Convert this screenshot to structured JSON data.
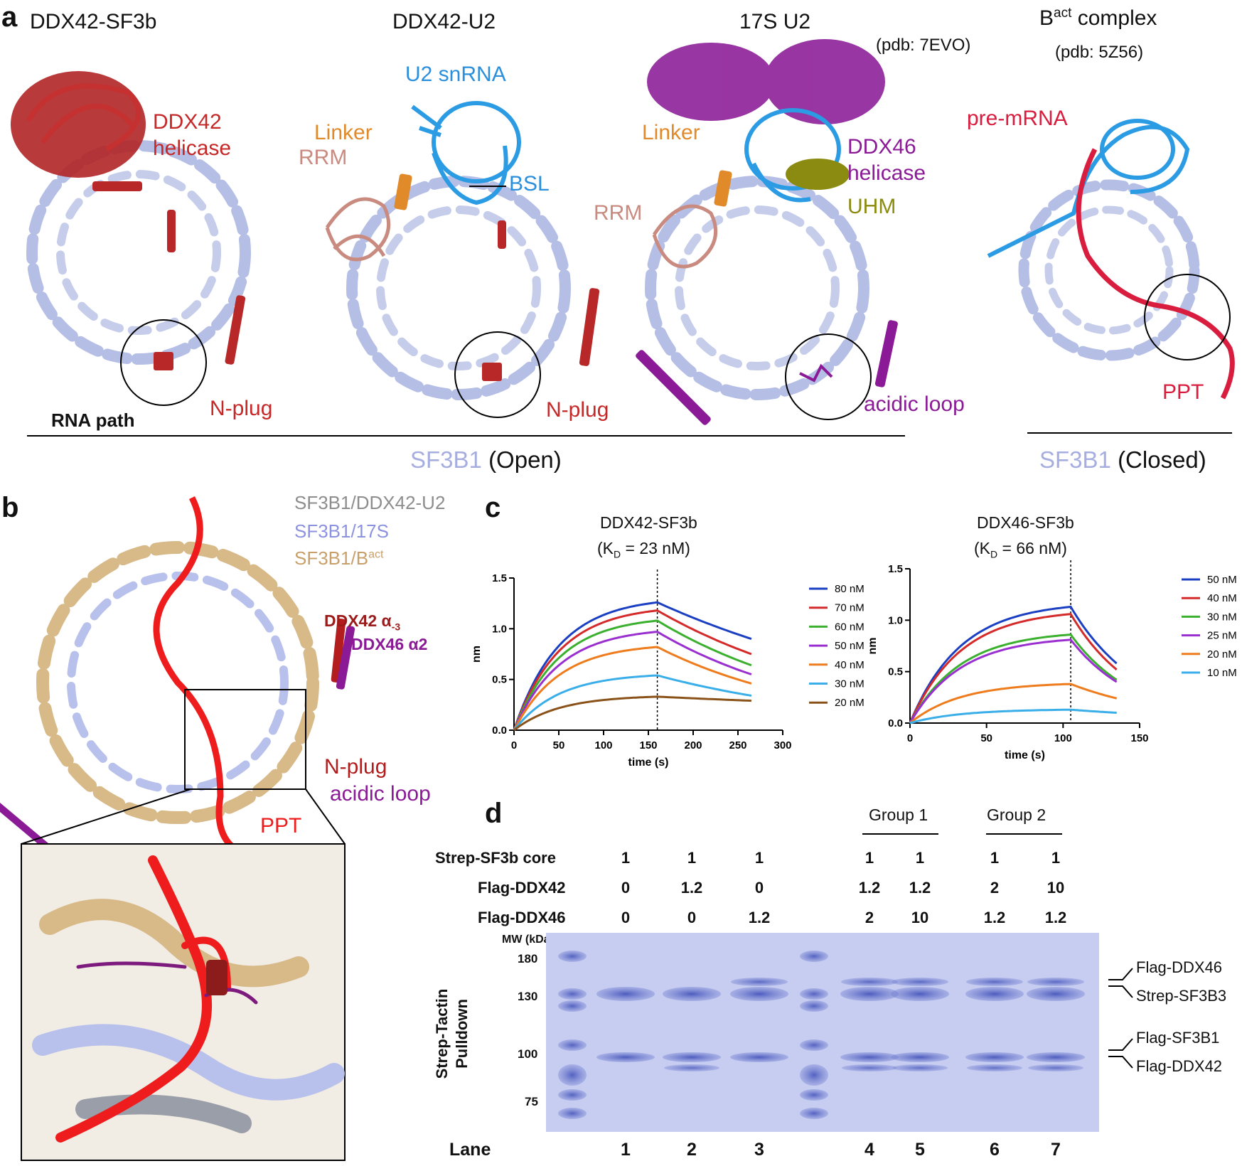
{
  "panel_a": {
    "label": "a",
    "titles": [
      "DDX42-SF3b",
      "DDX42-U2",
      "17S U2",
      "B",
      "act",
      " complex"
    ],
    "pdb_17s": "(pdb: 7EVO)",
    "pdb_bact": "(pdb: 5Z56)",
    "ddx42_helicase": [
      "DDX42",
      "helicase"
    ],
    "n_plug": "N-plug",
    "rna_path": "RNA path",
    "u2_snrna": "U2 snRNA",
    "linker": "Linker",
    "rrm": "RRM",
    "bsl": "BSL",
    "ddx46_helicase": [
      "DDX46",
      "helicase"
    ],
    "uhm": "UHM",
    "acidic_loop": "acidic loop",
    "pre_mrna": "pre-mRNA",
    "ppt": "PPT",
    "sf3b1": "SF3B1",
    "open": "(Open)",
    "closed": "(Closed)"
  },
  "panel_b": {
    "label": "b",
    "legend": [
      "SF3B1/DDX42-U2",
      "SF3B1/17S",
      "SF3B1/B",
      "act"
    ],
    "ddx42_a": [
      "DDX42 α",
      "-3"
    ],
    "ddx46_a2": "DDX46 α2",
    "n_plug": "N-plug",
    "acidic_loop": "acidic loop",
    "ppt": "PPT"
  },
  "panel_c": {
    "label": "c",
    "chart1_title": [
      "DDX42-SF3b",
      "(K",
      "D",
      " = 23 nM)"
    ],
    "chart2_title": [
      "DDX46-SF3b",
      "(K",
      "D",
      " = 66 nM)"
    ]
  },
  "chart_data": [
    {
      "type": "line",
      "title": "DDX42-SF3b (KD = 23 nM)",
      "xlabel": "time (s)",
      "ylabel": "nm",
      "xlim": [
        0,
        300
      ],
      "ylim": [
        0,
        1.5
      ],
      "xticks": [
        "0",
        "50",
        "100",
        "150",
        "200",
        "250",
        "300"
      ],
      "yticks": [
        "0.0",
        "0.5",
        "1.0",
        "1.5"
      ],
      "switch_time": 160,
      "end_time": 265,
      "legend_position": "right",
      "series": [
        {
          "name": "80 nM",
          "color": "#1a3fc2",
          "peak": 1.26,
          "end": 0.9
        },
        {
          "name": "70 nM",
          "color": "#d42a2a",
          "peak": 1.18,
          "end": 0.75
        },
        {
          "name": "60 nM",
          "color": "#3bb02e",
          "peak": 1.08,
          "end": 0.64
        },
        {
          "name": "50 nM",
          "color": "#9a2fd0",
          "peak": 0.97,
          "end": 0.55
        },
        {
          "name": "40 nM",
          "color": "#ee7b1c",
          "peak": 0.82,
          "end": 0.46
        },
        {
          "name": "30 nM",
          "color": "#39aee8",
          "peak": 0.54,
          "end": 0.34
        },
        {
          "name": "20 nM",
          "color": "#8a5218",
          "peak": 0.33,
          "end": 0.29
        }
      ]
    },
    {
      "type": "line",
      "title": "DDX46-SF3b (KD = 66 nM)",
      "xlabel": "time (s)",
      "ylabel": "nm",
      "xlim": [
        0,
        150
      ],
      "ylim": [
        0,
        1.5
      ],
      "xticks": [
        "0",
        "50",
        "100",
        "150"
      ],
      "yticks": [
        "0.0",
        "0.5",
        "1.0",
        "1.5"
      ],
      "switch_time": 105,
      "end_time": 135,
      "legend_position": "right",
      "series": [
        {
          "name": "50 nM",
          "color": "#1a3fc2",
          "peak": 1.13,
          "end": 0.58
        },
        {
          "name": "40 nM",
          "color": "#d42a2a",
          "peak": 1.06,
          "end": 0.52
        },
        {
          "name": "30 nM",
          "color": "#3bb02e",
          "peak": 0.86,
          "end": 0.42
        },
        {
          "name": "25 nM",
          "color": "#9a2fd0",
          "peak": 0.81,
          "end": 0.4
        },
        {
          "name": "20 nM",
          "color": "#ee7b1c",
          "peak": 0.38,
          "end": 0.24
        },
        {
          "name": "10 nM",
          "color": "#39aee8",
          "peak": 0.13,
          "end": 0.1
        }
      ]
    }
  ],
  "panel_d": {
    "label": "d",
    "group1": "Group 1",
    "group2": "Group 2",
    "rows": [
      {
        "label": "Strep-SF3b core",
        "values": [
          "1",
          "1",
          "1",
          "1",
          "1",
          "1",
          "1"
        ]
      },
      {
        "label": "Flag-DDX42",
        "values": [
          "0",
          "1.2",
          "0",
          "1.2",
          "1.2",
          "2",
          "10"
        ]
      },
      {
        "label": "Flag-DDX46",
        "values": [
          "0",
          "0",
          "1.2",
          "2",
          "10",
          "1.2",
          "1.2"
        ]
      }
    ],
    "mw_label": "MW (kDa)",
    "mw": [
      "180",
      "130",
      "100",
      "75"
    ],
    "side_label": [
      "Strep-Tactin",
      "Pulldown"
    ],
    "band_labels": [
      "Flag-DDX46",
      "Strep-SF3B3",
      "Flag-SF3B1",
      "Flag-DDX42"
    ],
    "lane_label": "Lane",
    "lanes": [
      "1",
      "2",
      "3",
      "4",
      "5",
      "6",
      "7"
    ]
  }
}
